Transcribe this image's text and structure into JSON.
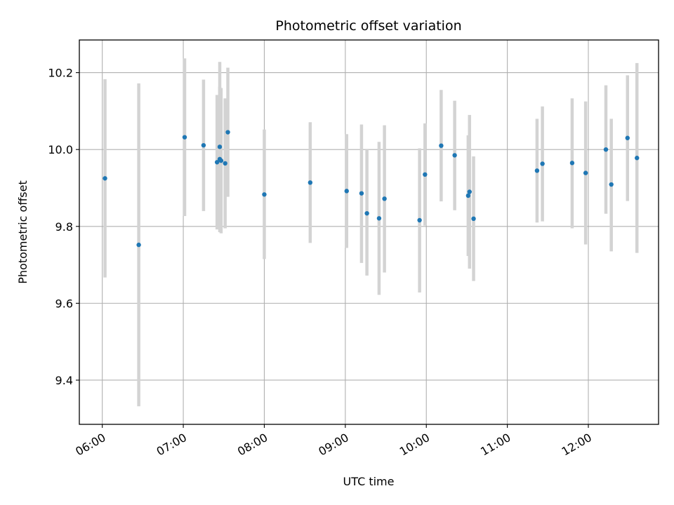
{
  "chart_data": {
    "type": "scatter",
    "title": "Photometric offset variation",
    "xlabel": "UTC time",
    "ylabel": "Photometric offset",
    "xlim": [
      "05:43",
      "12:52"
    ],
    "ylim": [
      9.285,
      10.285
    ],
    "x_ticks": [
      "06:00",
      "07:00",
      "08:00",
      "09:00",
      "10:00",
      "11:00",
      "12:00"
    ],
    "y_ticks": [
      "9.4",
      "9.6",
      "9.8",
      "10.0",
      "10.2"
    ],
    "grid": true,
    "colors": {
      "point": "#1f77b4",
      "errorbar": "#d3d3d3",
      "grid": "#b0b0b0"
    },
    "series": [
      {
        "points": [
          {
            "time": "06:02",
            "y": 9.925,
            "lo": 9.667,
            "hi": 10.183
          },
          {
            "time": "06:27",
            "y": 9.752,
            "lo": 9.332,
            "hi": 10.172
          },
          {
            "time": "07:01",
            "y": 10.032,
            "lo": 9.827,
            "hi": 10.237
          },
          {
            "time": "07:15",
            "y": 10.011,
            "lo": 9.84,
            "hi": 10.182
          },
          {
            "time": "07:25",
            "y": 9.967,
            "lo": 9.792,
            "hi": 10.142
          },
          {
            "time": "07:27",
            "y": 9.975,
            "lo": 9.785,
            "hi": 10.228
          },
          {
            "time": "07:27",
            "y": 10.007,
            "lo": 9.797,
            "hi": 10.163
          },
          {
            "time": "07:28",
            "y": 9.971,
            "lo": 9.782,
            "hi": 10.16
          },
          {
            "time": "07:31",
            "y": 9.964,
            "lo": 9.795,
            "hi": 10.133
          },
          {
            "time": "07:33",
            "y": 10.045,
            "lo": 9.877,
            "hi": 10.213
          },
          {
            "time": "08:00",
            "y": 9.883,
            "lo": 9.715,
            "hi": 10.052
          },
          {
            "time": "08:34",
            "y": 9.914,
            "lo": 9.757,
            "hi": 10.071
          },
          {
            "time": "09:01",
            "y": 9.892,
            "lo": 9.744,
            "hi": 10.04
          },
          {
            "time": "09:12",
            "y": 9.886,
            "lo": 9.705,
            "hi": 10.065
          },
          {
            "time": "09:16",
            "y": 9.834,
            "lo": 9.672,
            "hi": 10.0
          },
          {
            "time": "09:25",
            "y": 9.821,
            "lo": 9.622,
            "hi": 10.02
          },
          {
            "time": "09:29",
            "y": 9.872,
            "lo": 9.68,
            "hi": 10.063
          },
          {
            "time": "09:55",
            "y": 9.816,
            "lo": 9.628,
            "hi": 10.003
          },
          {
            "time": "09:59",
            "y": 9.935,
            "lo": 9.802,
            "hi": 10.068
          },
          {
            "time": "10:11",
            "y": 10.01,
            "lo": 9.865,
            "hi": 10.155
          },
          {
            "time": "10:21",
            "y": 9.985,
            "lo": 9.842,
            "hi": 10.127
          },
          {
            "time": "10:31",
            "y": 9.88,
            "lo": 9.723,
            "hi": 10.037
          },
          {
            "time": "10:32",
            "y": 9.89,
            "lo": 9.69,
            "hi": 10.09
          },
          {
            "time": "10:35",
            "y": 9.82,
            "lo": 9.658,
            "hi": 9.982
          },
          {
            "time": "11:22",
            "y": 9.945,
            "lo": 9.81,
            "hi": 10.08
          },
          {
            "time": "11:26",
            "y": 9.963,
            "lo": 9.813,
            "hi": 10.112
          },
          {
            "time": "11:48",
            "y": 9.965,
            "lo": 9.795,
            "hi": 10.133
          },
          {
            "time": "11:58",
            "y": 9.939,
            "lo": 9.753,
            "hi": 10.125
          },
          {
            "time": "12:13",
            "y": 10.0,
            "lo": 9.833,
            "hi": 10.167
          },
          {
            "time": "12:17",
            "y": 9.909,
            "lo": 9.735,
            "hi": 10.08
          },
          {
            "time": "12:29",
            "y": 10.03,
            "lo": 9.866,
            "hi": 10.193
          },
          {
            "time": "12:36",
            "y": 9.978,
            "lo": 9.731,
            "hi": 10.225
          }
        ]
      }
    ]
  }
}
